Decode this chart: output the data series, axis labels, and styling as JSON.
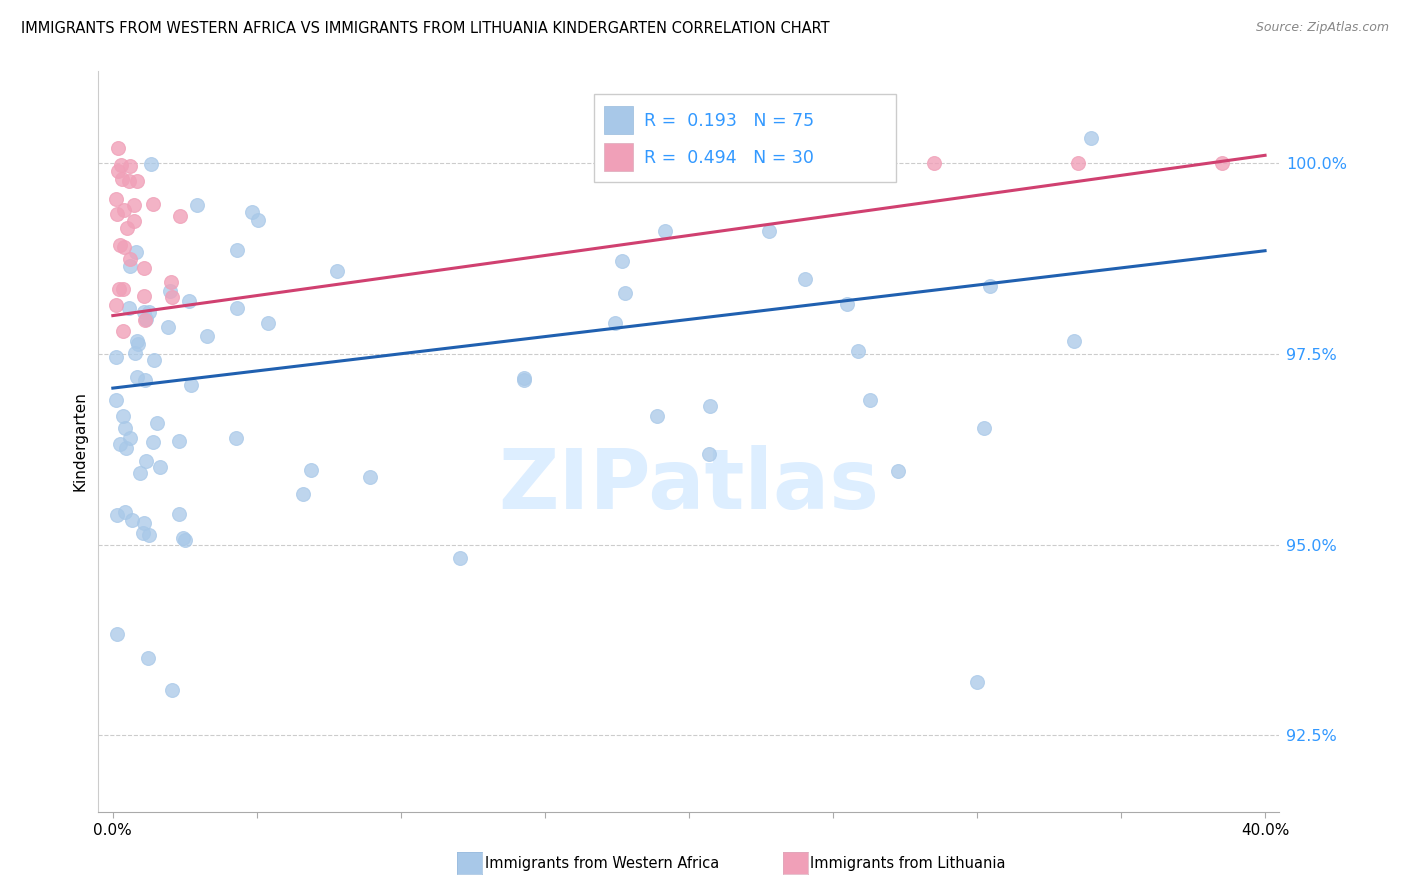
{
  "title": "IMMIGRANTS FROM WESTERN AFRICA VS IMMIGRANTS FROM LITHUANIA KINDERGARTEN CORRELATION CHART",
  "source": "Source: ZipAtlas.com",
  "ylabel": "Kindergarten",
  "yticks": [
    92.5,
    95.0,
    97.5,
    100.0
  ],
  "ylim": [
    91.5,
    101.2
  ],
  "xlim": [
    -0.005,
    0.405
  ],
  "blue_R": 0.193,
  "blue_N": 75,
  "pink_R": 0.494,
  "pink_N": 30,
  "blue_color": "#a8c8e8",
  "pink_color": "#f0a0b8",
  "blue_line_color": "#2060b0",
  "pink_line_color": "#d04070",
  "watermark_color": "#ddeeff",
  "blue_trend_x0": 0.0,
  "blue_trend_x1": 0.4,
  "blue_trend_y0": 97.05,
  "blue_trend_y1": 98.85,
  "pink_trend_x0": 0.0,
  "pink_trend_x1": 0.4,
  "pink_trend_y0": 98.0,
  "pink_trend_y1": 100.1
}
